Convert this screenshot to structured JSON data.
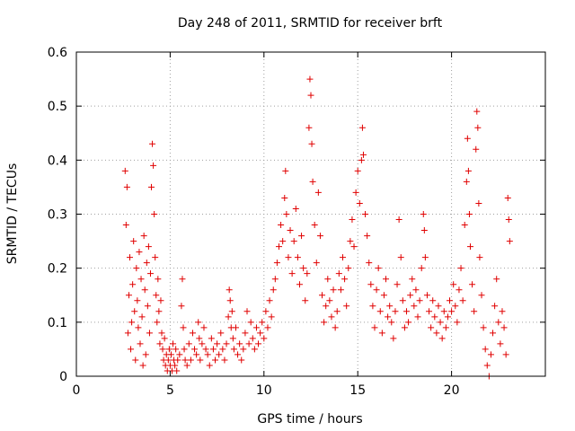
{
  "chart_data": {
    "type": "scatter",
    "title": "Day 248 of 2011, SRMTID for receiver brft",
    "xlabel": "GPS time / hours",
    "ylabel": "SRMTID / TECUs",
    "xlim": [
      0,
      25
    ],
    "ylim": [
      0,
      0.6
    ],
    "xticks": [
      0,
      5,
      10,
      15,
      20
    ],
    "xtick_labels": [
      "0",
      "5",
      "10",
      "15",
      "20"
    ],
    "yticks": [
      0,
      0.1,
      0.2,
      0.3,
      0.4,
      0.5,
      0.6
    ],
    "ytick_labels": [
      "0",
      "0.1",
      "0.2",
      "0.3",
      "0.4",
      "0.5",
      "0.6"
    ],
    "grid": true,
    "marker": "+",
    "color": "#e00000",
    "series": [
      {
        "name": "SRMTID",
        "points": [
          [
            2.6,
            0.38
          ],
          [
            2.65,
            0.28
          ],
          [
            2.7,
            0.35
          ],
          [
            2.75,
            0.08
          ],
          [
            2.8,
            0.15
          ],
          [
            2.85,
            0.22
          ],
          [
            2.9,
            0.05
          ],
          [
            2.95,
            0.1
          ],
          [
            3.0,
            0.17
          ],
          [
            3.05,
            0.25
          ],
          [
            3.1,
            0.12
          ],
          [
            3.15,
            0.03
          ],
          [
            3.2,
            0.2
          ],
          [
            3.25,
            0.14
          ],
          [
            3.3,
            0.09
          ],
          [
            3.35,
            0.23
          ],
          [
            3.4,
            0.06
          ],
          [
            3.45,
            0.18
          ],
          [
            3.5,
            0.11
          ],
          [
            3.55,
            0.02
          ],
          [
            3.6,
            0.26
          ],
          [
            3.65,
            0.16
          ],
          [
            3.7,
            0.04
          ],
          [
            3.75,
            0.21
          ],
          [
            3.8,
            0.13
          ],
          [
            3.85,
            0.24
          ],
          [
            3.9,
            0.08
          ],
          [
            3.95,
            0.19
          ],
          [
            4.0,
            0.35
          ],
          [
            4.05,
            0.43
          ],
          [
            4.1,
            0.39
          ],
          [
            4.15,
            0.3
          ],
          [
            4.2,
            0.22
          ],
          [
            4.25,
            0.15
          ],
          [
            4.3,
            0.1
          ],
          [
            4.35,
            0.18
          ],
          [
            4.4,
            0.12
          ],
          [
            4.45,
            0.06
          ],
          [
            4.5,
            0.14
          ],
          [
            4.55,
            0.08
          ],
          [
            4.6,
            0.05
          ],
          [
            4.65,
            0.03
          ],
          [
            4.7,
            0.07
          ],
          [
            4.75,
            0.02
          ],
          [
            4.8,
            0.04
          ],
          [
            4.85,
            0.01
          ],
          [
            4.9,
            0.03
          ],
          [
            4.95,
            0.05
          ],
          [
            5.0,
            0.02
          ],
          [
            5.05,
            0.04
          ],
          [
            5.1,
            0.01
          ],
          [
            5.15,
            0.06
          ],
          [
            5.2,
            0.03
          ],
          [
            5.25,
            0.02
          ],
          [
            5.3,
            0.05
          ],
          [
            5.35,
            0.01
          ],
          [
            5.4,
            0.03
          ],
          [
            5.5,
            0.04
          ],
          [
            5.6,
            0.13
          ],
          [
            5.65,
            0.18
          ],
          [
            5.7,
            0.09
          ],
          [
            5.75,
            0.05
          ],
          [
            5.8,
            0.03
          ],
          [
            5.9,
            0.02
          ],
          [
            6.0,
            0.06
          ],
          [
            6.1,
            0.03
          ],
          [
            6.2,
            0.08
          ],
          [
            6.3,
            0.05
          ],
          [
            6.4,
            0.04
          ],
          [
            6.5,
            0.1
          ],
          [
            6.55,
            0.07
          ],
          [
            6.6,
            0.03
          ],
          [
            6.7,
            0.06
          ],
          [
            6.8,
            0.09
          ],
          [
            6.9,
            0.05
          ],
          [
            7.0,
            0.04
          ],
          [
            7.1,
            0.02
          ],
          [
            7.2,
            0.07
          ],
          [
            7.3,
            0.05
          ],
          [
            7.4,
            0.03
          ],
          [
            7.5,
            0.06
          ],
          [
            7.6,
            0.04
          ],
          [
            7.7,
            0.08
          ],
          [
            7.8,
            0.05
          ],
          [
            7.9,
            0.03
          ],
          [
            8.0,
            0.06
          ],
          [
            8.1,
            0.11
          ],
          [
            8.15,
            0.16
          ],
          [
            8.2,
            0.14
          ],
          [
            8.25,
            0.09
          ],
          [
            8.3,
            0.12
          ],
          [
            8.35,
            0.07
          ],
          [
            8.4,
            0.05
          ],
          [
            8.5,
            0.09
          ],
          [
            8.6,
            0.04
          ],
          [
            8.7,
            0.06
          ],
          [
            8.8,
            0.03
          ],
          [
            8.9,
            0.05
          ],
          [
            9.0,
            0.08
          ],
          [
            9.1,
            0.12
          ],
          [
            9.2,
            0.06
          ],
          [
            9.3,
            0.1
          ],
          [
            9.4,
            0.07
          ],
          [
            9.5,
            0.05
          ],
          [
            9.6,
            0.09
          ],
          [
            9.7,
            0.06
          ],
          [
            9.8,
            0.08
          ],
          [
            9.9,
            0.1
          ],
          [
            10.0,
            0.07
          ],
          [
            10.1,
            0.12
          ],
          [
            10.2,
            0.09
          ],
          [
            10.3,
            0.14
          ],
          [
            10.4,
            0.11
          ],
          [
            10.5,
            0.16
          ],
          [
            10.6,
            0.18
          ],
          [
            10.7,
            0.21
          ],
          [
            10.8,
            0.24
          ],
          [
            10.9,
            0.28
          ],
          [
            11.0,
            0.25
          ],
          [
            11.1,
            0.33
          ],
          [
            11.15,
            0.38
          ],
          [
            11.2,
            0.3
          ],
          [
            11.3,
            0.22
          ],
          [
            11.4,
            0.27
          ],
          [
            11.5,
            0.19
          ],
          [
            11.6,
            0.25
          ],
          [
            11.7,
            0.31
          ],
          [
            11.8,
            0.22
          ],
          [
            11.9,
            0.17
          ],
          [
            12.0,
            0.26
          ],
          [
            12.1,
            0.2
          ],
          [
            12.2,
            0.14
          ],
          [
            12.3,
            0.19
          ],
          [
            12.4,
            0.46
          ],
          [
            12.45,
            0.55
          ],
          [
            12.5,
            0.52
          ],
          [
            12.55,
            0.43
          ],
          [
            12.6,
            0.36
          ],
          [
            12.7,
            0.28
          ],
          [
            12.8,
            0.21
          ],
          [
            12.9,
            0.34
          ],
          [
            13.0,
            0.26
          ],
          [
            13.1,
            0.15
          ],
          [
            13.2,
            0.1
          ],
          [
            13.3,
            0.13
          ],
          [
            13.4,
            0.18
          ],
          [
            13.5,
            0.14
          ],
          [
            13.6,
            0.11
          ],
          [
            13.7,
            0.16
          ],
          [
            13.8,
            0.09
          ],
          [
            13.9,
            0.12
          ],
          [
            14.0,
            0.19
          ],
          [
            14.1,
            0.16
          ],
          [
            14.2,
            0.22
          ],
          [
            14.3,
            0.18
          ],
          [
            14.4,
            0.13
          ],
          [
            14.5,
            0.2
          ],
          [
            14.6,
            0.25
          ],
          [
            14.7,
            0.29
          ],
          [
            14.8,
            0.24
          ],
          [
            14.9,
            0.34
          ],
          [
            15.0,
            0.38
          ],
          [
            15.1,
            0.32
          ],
          [
            15.2,
            0.4
          ],
          [
            15.25,
            0.46
          ],
          [
            15.3,
            0.41
          ],
          [
            15.4,
            0.3
          ],
          [
            15.5,
            0.26
          ],
          [
            15.6,
            0.21
          ],
          [
            15.7,
            0.17
          ],
          [
            15.8,
            0.13
          ],
          [
            15.9,
            0.09
          ],
          [
            16.0,
            0.16
          ],
          [
            16.1,
            0.2
          ],
          [
            16.2,
            0.12
          ],
          [
            16.3,
            0.08
          ],
          [
            16.4,
            0.15
          ],
          [
            16.5,
            0.18
          ],
          [
            16.6,
            0.11
          ],
          [
            16.7,
            0.13
          ],
          [
            16.8,
            0.1
          ],
          [
            16.9,
            0.07
          ],
          [
            17.0,
            0.12
          ],
          [
            17.1,
            0.17
          ],
          [
            17.2,
            0.29
          ],
          [
            17.3,
            0.22
          ],
          [
            17.4,
            0.14
          ],
          [
            17.5,
            0.09
          ],
          [
            17.6,
            0.12
          ],
          [
            17.7,
            0.1
          ],
          [
            17.8,
            0.15
          ],
          [
            17.9,
            0.18
          ],
          [
            18.0,
            0.13
          ],
          [
            18.1,
            0.16
          ],
          [
            18.2,
            0.11
          ],
          [
            18.3,
            0.14
          ],
          [
            18.4,
            0.2
          ],
          [
            18.5,
            0.3
          ],
          [
            18.55,
            0.27
          ],
          [
            18.6,
            0.22
          ],
          [
            18.7,
            0.15
          ],
          [
            18.8,
            0.12
          ],
          [
            18.9,
            0.09
          ],
          [
            19.0,
            0.14
          ],
          [
            19.1,
            0.11
          ],
          [
            19.2,
            0.08
          ],
          [
            19.3,
            0.13
          ],
          [
            19.4,
            0.1
          ],
          [
            19.5,
            0.07
          ],
          [
            19.6,
            0.12
          ],
          [
            19.7,
            0.09
          ],
          [
            19.8,
            0.11
          ],
          [
            19.9,
            0.14
          ],
          [
            20.0,
            0.12
          ],
          [
            20.1,
            0.17
          ],
          [
            20.2,
            0.13
          ],
          [
            20.3,
            0.1
          ],
          [
            20.4,
            0.16
          ],
          [
            20.5,
            0.2
          ],
          [
            20.6,
            0.14
          ],
          [
            20.7,
            0.28
          ],
          [
            20.8,
            0.36
          ],
          [
            20.85,
            0.44
          ],
          [
            20.9,
            0.38
          ],
          [
            20.95,
            0.3
          ],
          [
            21.0,
            0.24
          ],
          [
            21.1,
            0.17
          ],
          [
            21.2,
            0.12
          ],
          [
            21.3,
            0.42
          ],
          [
            21.35,
            0.49
          ],
          [
            21.4,
            0.46
          ],
          [
            21.45,
            0.32
          ],
          [
            21.5,
            0.22
          ],
          [
            21.6,
            0.15
          ],
          [
            21.7,
            0.09
          ],
          [
            21.8,
            0.05
          ],
          [
            21.9,
            0.02
          ],
          [
            22.0,
            0.0
          ],
          [
            22.1,
            0.04
          ],
          [
            22.2,
            0.08
          ],
          [
            22.3,
            0.13
          ],
          [
            22.4,
            0.18
          ],
          [
            22.5,
            0.1
          ],
          [
            22.6,
            0.06
          ],
          [
            22.7,
            0.12
          ],
          [
            22.8,
            0.09
          ],
          [
            22.9,
            0.04
          ],
          [
            23.0,
            0.33
          ],
          [
            23.05,
            0.29
          ],
          [
            23.1,
            0.25
          ]
        ]
      }
    ]
  }
}
